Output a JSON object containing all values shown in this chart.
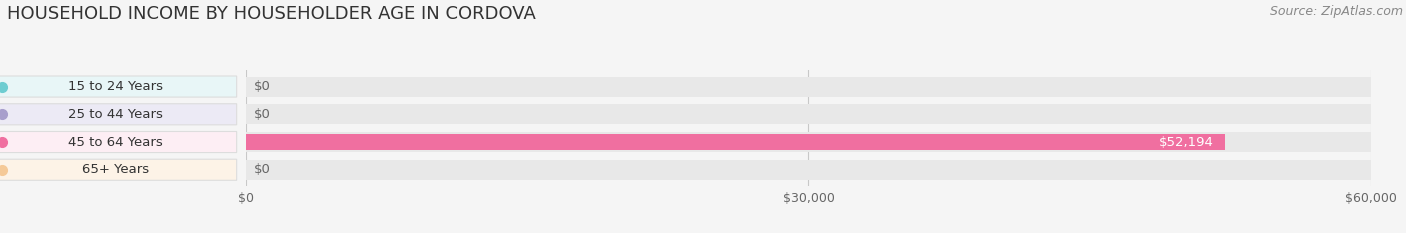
{
  "title": "HOUSEHOLD INCOME BY HOUSEHOLDER AGE IN CORDOVA",
  "source": "Source: ZipAtlas.com",
  "categories": [
    "15 to 24 Years",
    "25 to 44 Years",
    "45 to 64 Years",
    "65+ Years"
  ],
  "values": [
    0,
    0,
    52194,
    0
  ],
  "bar_colors": [
    "#6ecdd1",
    "#a89fcc",
    "#f06fa0",
    "#f5c997"
  ],
  "label_bg_colors": [
    "#e8f6f7",
    "#eceaf5",
    "#fdeef4",
    "#fdf3e7"
  ],
  "bar_label_colors": [
    "#444444",
    "#444444",
    "#ffffff",
    "#444444"
  ],
  "background_color": "#f5f5f5",
  "bar_bg_color": "#e8e8e8",
  "xlim": [
    0,
    60000
  ],
  "xticks": [
    0,
    30000,
    60000
  ],
  "xtick_labels": [
    "$0",
    "$30,000",
    "$60,000"
  ],
  "title_fontsize": 13,
  "label_fontsize": 9.5,
  "tick_fontsize": 9,
  "source_fontsize": 9
}
